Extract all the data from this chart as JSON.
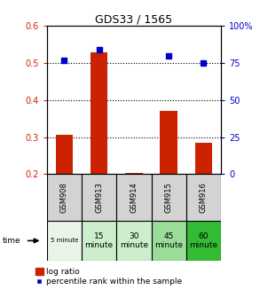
{
  "title": "GDS33 / 1565",
  "categories": [
    "GSM908",
    "GSM913",
    "GSM914",
    "GSM915",
    "GSM916"
  ],
  "time_labels": [
    "5 minute",
    "15\nminute",
    "30\nminute",
    "45\nminute",
    "60\nminute"
  ],
  "time_colors": [
    "#e8f5e8",
    "#cceecc",
    "#cceecc",
    "#99dd99",
    "#33bb33"
  ],
  "log_ratio": [
    0.305,
    0.53,
    0.202,
    0.37,
    0.285
  ],
  "percentile_rank_pct": [
    77,
    84,
    null,
    80,
    75
  ],
  "bar_color": "#cc2200",
  "dot_color": "#0000cc",
  "ylim_left": [
    0.2,
    0.6
  ],
  "ylim_right": [
    0,
    100
  ],
  "yticks_left": [
    0.2,
    0.3,
    0.4,
    0.5,
    0.6
  ],
  "yticks_right": [
    0,
    25,
    50,
    75,
    100
  ],
  "ytick_labels_right": [
    "0",
    "25",
    "50",
    "75",
    "100%"
  ],
  "hlines": [
    0.3,
    0.4,
    0.5
  ],
  "bar_width": 0.5,
  "legend_labels": [
    "log ratio",
    "percentile rank within the sample"
  ],
  "gsm_bg": "#d3d3d3"
}
